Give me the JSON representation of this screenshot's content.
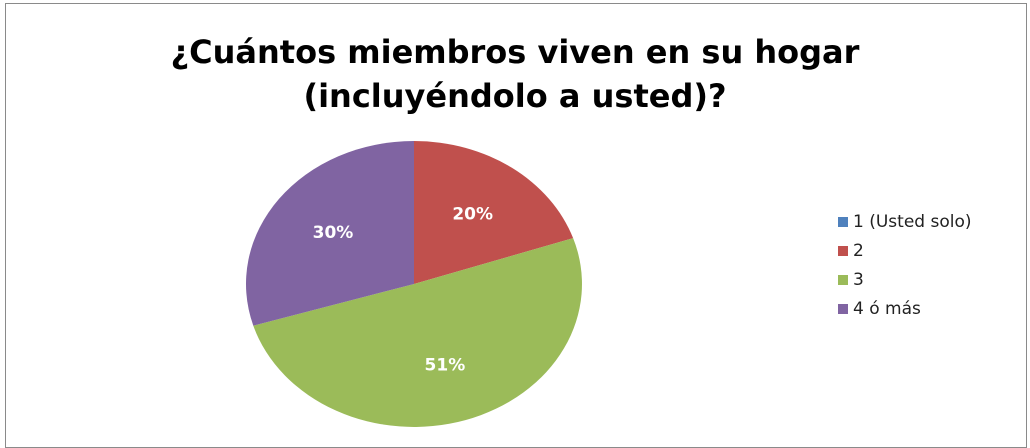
{
  "chart_data": {
    "type": "pie",
    "title_lines": [
      "¿Cuántos miembros viven en su hogar",
      "(incluyéndolo a usted)?"
    ],
    "categories": [
      "1 (Usted solo)",
      "2",
      "3",
      "4 ó más"
    ],
    "values": [
      0,
      20,
      51,
      30
    ],
    "data_labels": [
      "",
      "20%",
      "51%",
      "30%"
    ],
    "colors": [
      "#4f81bd",
      "#c0504d",
      "#9bbb59",
      "#8064a2"
    ],
    "start_angle_deg": 0,
    "direction": "clockwise",
    "legend_position": "right"
  }
}
